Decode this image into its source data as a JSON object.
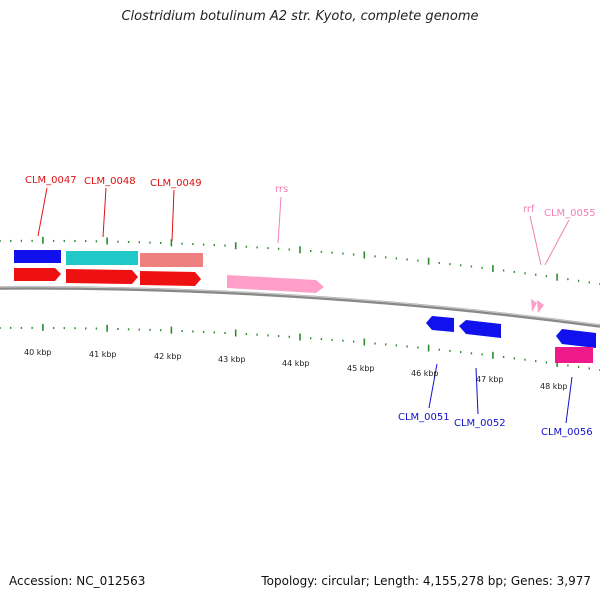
{
  "title": "Clostridium botulinum A2 str. Kyoto, complete genome",
  "footer": {
    "accession": "Accession: NC_012563",
    "summary": "Topology: circular; Length: 4,155,278 bp; Genes: 3,977"
  },
  "colors": {
    "backbone": "#888888",
    "tick": "#2e8b2e",
    "forward_red": "#ee1111",
    "cds_blue": "#1111ee",
    "cds_cyan": "#20c8c8",
    "cds_salmon": "#ee8080",
    "rrna_pink": "#ff9ec8",
    "cds_magenta": "#ee1a8a",
    "label_red": "#dd1111",
    "label_pink": "#f080b8",
    "label_blue": "#1111cc"
  },
  "ticks": [
    "40 kbp",
    "41 kbp",
    "42 kbp",
    "43 kbp",
    "44 kbp",
    "45 kbp",
    "46 kbp",
    "47 kbp",
    "48 kbp"
  ],
  "genes": {
    "top": [
      {
        "label": "CLM_0047",
        "color": "label_red"
      },
      {
        "label": "CLM_0048",
        "color": "label_red"
      },
      {
        "label": "CLM_0049",
        "color": "label_red"
      },
      {
        "label": "rrs",
        "color": "label_pink"
      },
      {
        "label": "rrf",
        "color": "label_pink"
      },
      {
        "label": "CLM_0055",
        "color": "label_pink"
      }
    ],
    "bottom": [
      {
        "label": "CLM_0051",
        "color": "label_blue"
      },
      {
        "label": "CLM_0052",
        "color": "label_blue"
      },
      {
        "label": "CLM_0056",
        "color": "label_blue"
      }
    ]
  }
}
